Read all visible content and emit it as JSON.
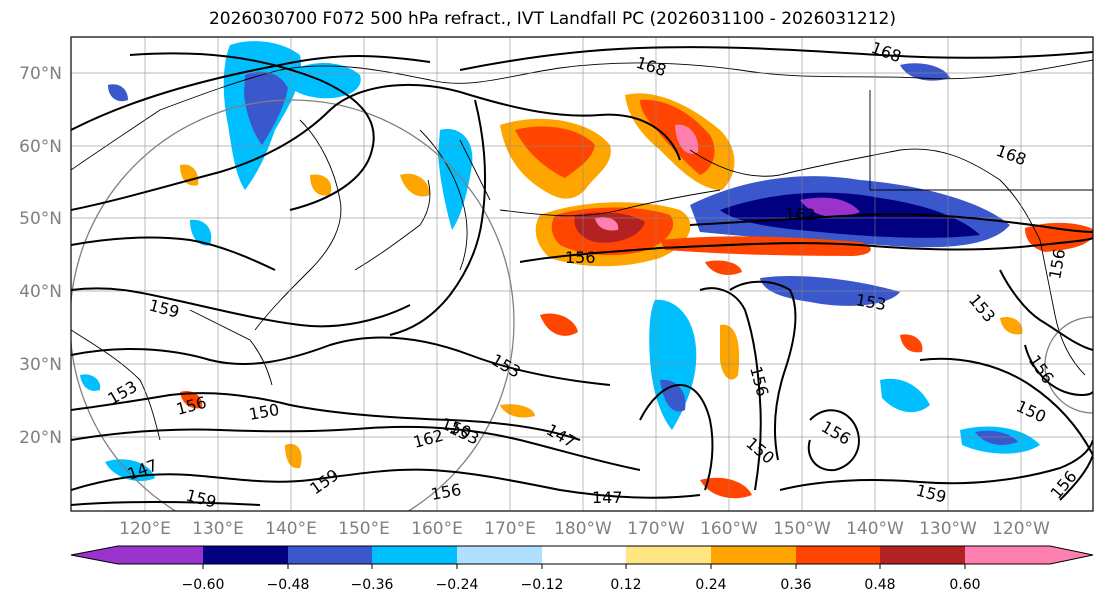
{
  "title": "2026030700 F072 500 hPa refract., IVT Landfall PC (2026031100 - 2026031212)",
  "map": {
    "lon_range": [
      110,
      250
    ],
    "lat_range": [
      10,
      75
    ],
    "lat_labels": [
      "70°N",
      "60°N",
      "50°N",
      "40°N",
      "30°N",
      "20°N"
    ],
    "lon_labels": [
      "120°E",
      "130°E",
      "140°E",
      "150°E",
      "160°E",
      "170°E",
      "180°W",
      "170°W",
      "160°W",
      "150°W",
      "140°W",
      "130°W",
      "120°W"
    ],
    "contour_labels": [
      "168",
      "168",
      "168",
      "162",
      "156",
      "159",
      "153",
      "150",
      "153",
      "156",
      "150",
      "153",
      "162",
      "147",
      "159",
      "156",
      "147",
      "153",
      "153",
      "156",
      "156",
      "150",
      "159",
      "156",
      "150",
      "156",
      "159",
      "147",
      "156"
    ]
  },
  "colorbar": {
    "colors": [
      "#9933cc",
      "#000080",
      "#3a57cc",
      "#00bfff",
      "#b0e0ff",
      "#ffffff",
      "#ffe680",
      "#ffa500",
      "#ff4500",
      "#b22222",
      "#ff80b0"
    ],
    "ticks": [
      "−0.60",
      "−0.48",
      "−0.36",
      "−0.24",
      "−0.12",
      "0.12",
      "0.24",
      "0.36",
      "0.48",
      "0.60"
    ]
  }
}
